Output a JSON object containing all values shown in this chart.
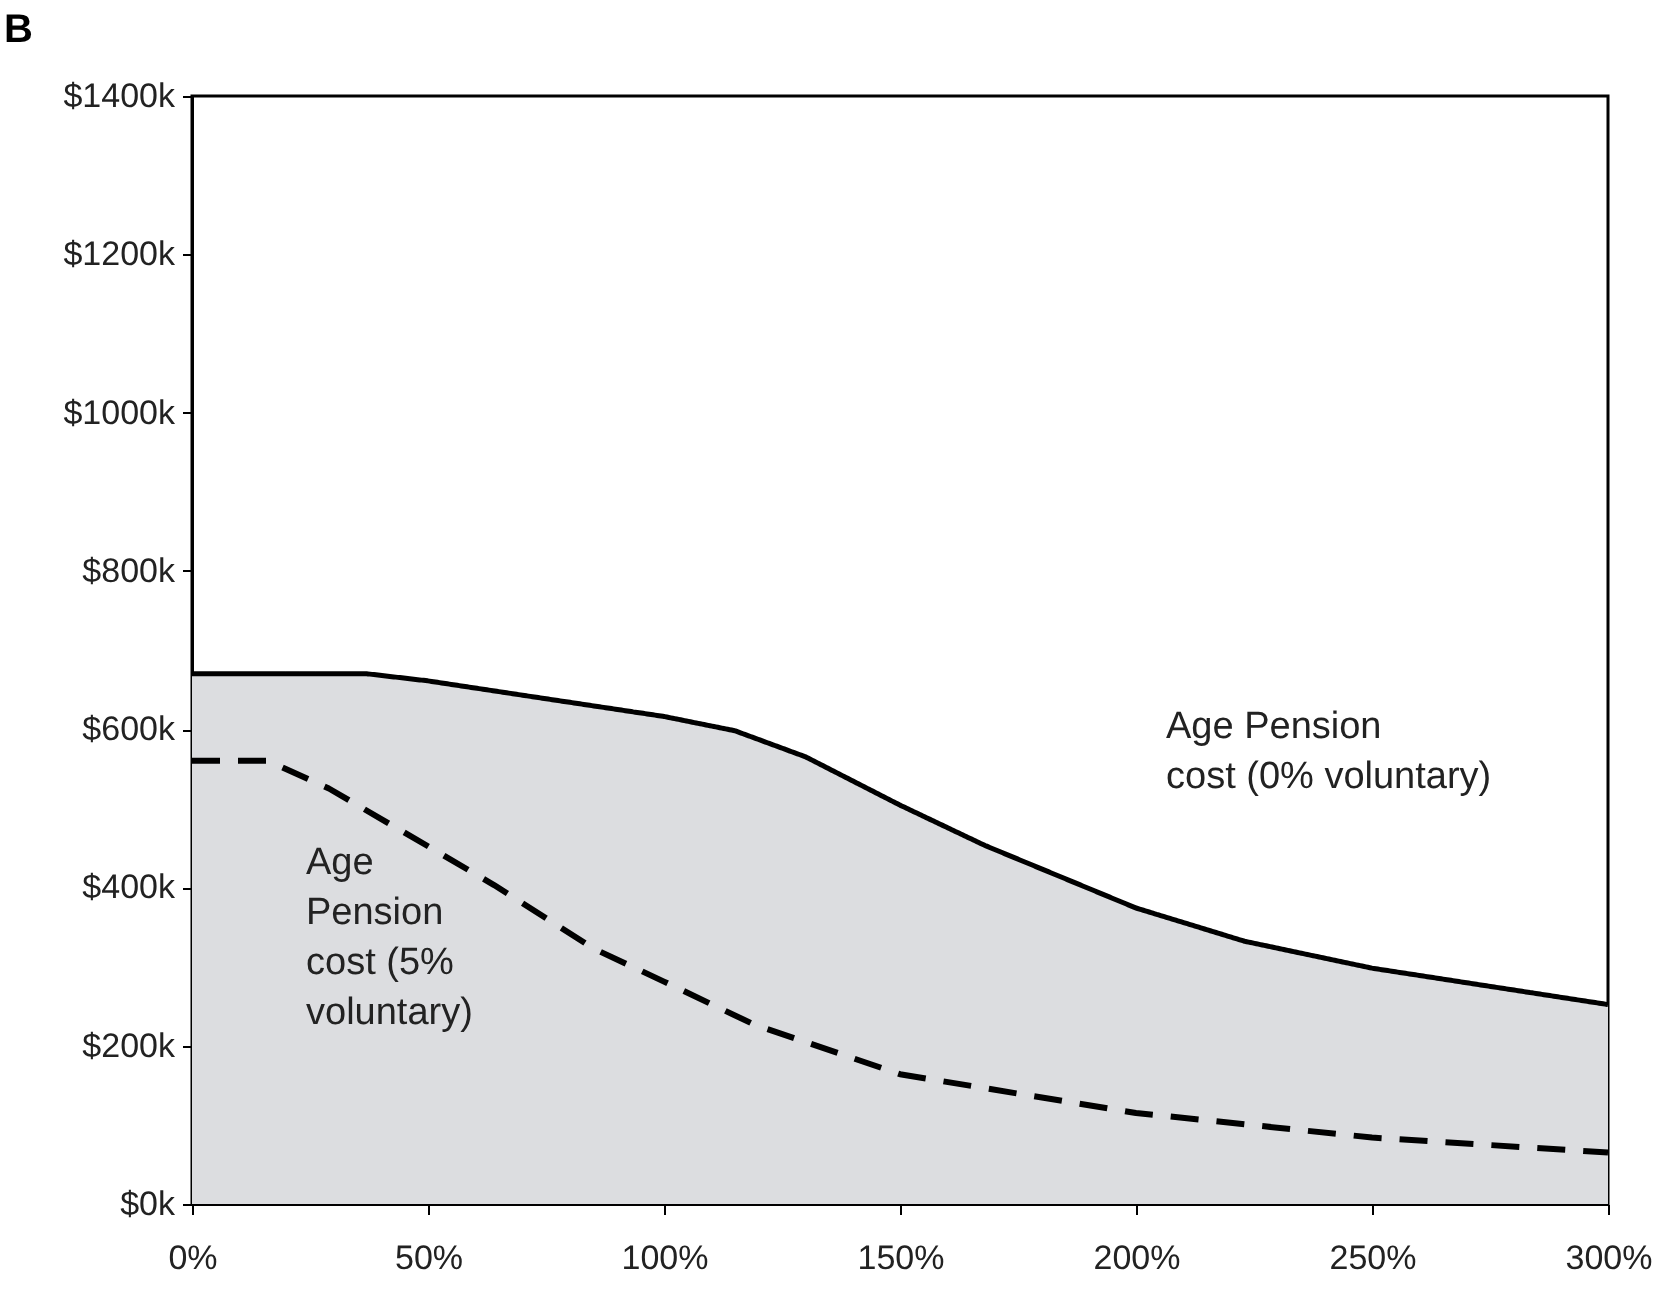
{
  "chart_data": {
    "type": "area",
    "title": "B",
    "xlim": [
      0,
      300
    ],
    "xticks": [
      {
        "value": 0,
        "label": "0%"
      },
      {
        "value": 50,
        "label": "50%"
      },
      {
        "value": 100,
        "label": "100%"
      },
      {
        "value": 150,
        "label": "150%"
      },
      {
        "value": 200,
        "label": "200%"
      },
      {
        "value": 250,
        "label": "250%"
      },
      {
        "value": 300,
        "label": "300%"
      }
    ],
    "ylim": [
      0,
      1400
    ],
    "yticks": [
      {
        "value": 0,
        "label": "$0k"
      },
      {
        "value": 200,
        "label": "$200k"
      },
      {
        "value": 400,
        "label": "$400k"
      },
      {
        "value": 600,
        "label": "$600k"
      },
      {
        "value": 800,
        "label": "$800k"
      },
      {
        "value": 1000,
        "label": "$1000k"
      },
      {
        "value": 1200,
        "label": "$1200k"
      },
      {
        "value": 1400,
        "label": "$1400k"
      }
    ],
    "grid": false,
    "legend": false,
    "series": [
      {
        "name": "Age Pension cost (0% voluntary)",
        "color": "#dcdde0",
        "x": [
          0,
          37,
          50,
          71,
          100,
          115,
          130,
          150,
          168,
          200,
          223,
          250,
          300
        ],
        "values": [
          670,
          670,
          661,
          642,
          616,
          598,
          565,
          504,
          453,
          374,
          332,
          298,
          252
        ]
      },
      {
        "name": "Age Pension cost (5% voluntary)",
        "type": "line",
        "color": "#000000",
        "line_style": "dashed",
        "x": [
          0,
          16,
          29,
          50,
          64,
          85,
          100,
          119,
          150,
          200,
          250,
          300
        ],
        "values": [
          560,
          560,
          525,
          452,
          403,
          323,
          281,
          227,
          164,
          115,
          84,
          65
        ]
      }
    ]
  }
}
